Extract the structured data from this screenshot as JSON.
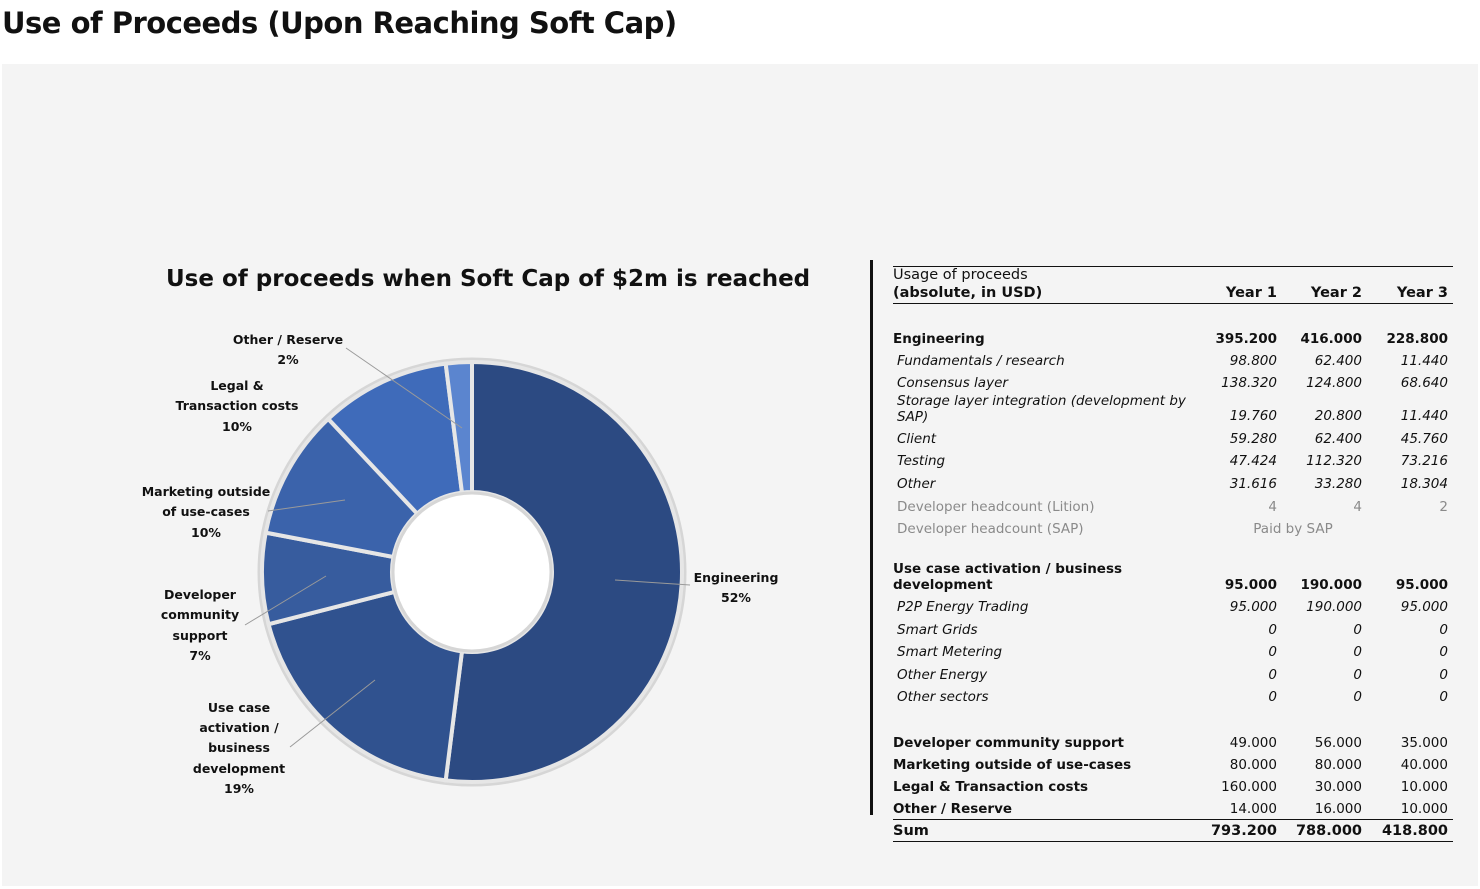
{
  "page_title": "Use of Proceeds (Upon Reaching Soft Cap)",
  "chart_data": {
    "type": "pie",
    "variant": "donut",
    "title": "Use of proceeds when Soft Cap of $2m is reached",
    "slices": [
      {
        "label": "Engineering",
        "percent_label": "52%",
        "value": 52,
        "color": "#2c4a82"
      },
      {
        "label": "Use case activation / business development",
        "percent_label": "19%",
        "value": 19,
        "color": "#30528f"
      },
      {
        "label": "Developer community support",
        "percent_label": "7%",
        "value": 7,
        "color": "#375c9e"
      },
      {
        "label": "Marketing outside of use-cases",
        "percent_label": "10%",
        "value": 10,
        "color": "#3b63ab"
      },
      {
        "label": "Legal & Transaction costs",
        "percent_label": "10%",
        "value": 10,
        "color": "#3f6bba"
      },
      {
        "label": "Other / Reserve",
        "percent_label": "2%",
        "value": 2,
        "color": "#5b85cf"
      }
    ]
  },
  "table": {
    "header": {
      "label_line1": "Usage of proceeds",
      "label_line2": "(absolute, in USD)",
      "years": [
        "Year  1",
        "Year 2",
        "Year 3"
      ]
    },
    "rows": [
      {
        "label": "Engineering",
        "values": [
          "395.200",
          "416.000",
          "228.800"
        ],
        "style": "bold"
      },
      {
        "label": "Fundamentals / research",
        "values": [
          "98.800",
          "62.400",
          "11.440"
        ],
        "style": "sub"
      },
      {
        "label": "Consensus layer",
        "values": [
          "138.320",
          "124.800",
          "68.640"
        ],
        "style": "sub"
      },
      {
        "label": "Storage layer integration (development by SAP)",
        "values": [
          "19.760",
          "20.800",
          "11.440"
        ],
        "style": "sub"
      },
      {
        "label": "Client",
        "values": [
          "59.280",
          "62.400",
          "45.760"
        ],
        "style": "sub"
      },
      {
        "label": "Testing",
        "values": [
          "47.424",
          "112.320",
          "73.216"
        ],
        "style": "sub"
      },
      {
        "label": "Other",
        "values": [
          "31.616",
          "33.280",
          "18.304"
        ],
        "style": "sub"
      },
      {
        "label": "Developer headcount (Lition)",
        "values": [
          "4",
          "4",
          "2"
        ],
        "style": "gray"
      },
      {
        "label": "Developer headcount (SAP)",
        "values": [
          "Paid by SAP"
        ],
        "style": "gray"
      },
      {
        "label": "Use case activation / business development",
        "values": [
          "95.000",
          "190.000",
          "95.000"
        ],
        "style": "bold"
      },
      {
        "label": "P2P Energy Trading",
        "values": [
          "95.000",
          "190.000",
          "95.000"
        ],
        "style": "sub"
      },
      {
        "label": "Smart Grids",
        "values": [
          "0",
          "0",
          "0"
        ],
        "style": "sub"
      },
      {
        "label": "Smart Metering",
        "values": [
          "0",
          "0",
          "0"
        ],
        "style": "sub"
      },
      {
        "label": "Other Energy",
        "values": [
          "0",
          "0",
          "0"
        ],
        "style": "sub"
      },
      {
        "label": "Other sectors",
        "values": [
          "0",
          "0",
          "0"
        ],
        "style": "sub"
      },
      {
        "label": "Developer community support",
        "values": [
          "49.000",
          "56.000",
          "35.000"
        ],
        "style": "boldlabel"
      },
      {
        "label": "Marketing outside of use-cases",
        "values": [
          "80.000",
          "80.000",
          "40.000"
        ],
        "style": "boldlabel"
      },
      {
        "label": "Legal & Transaction costs",
        "values": [
          "160.000",
          "30.000",
          "10.000"
        ],
        "style": "boldlabel"
      },
      {
        "label": "Other / Reserve",
        "values": [
          "14.000",
          "16.000",
          "10.000"
        ],
        "style": "boldlabel"
      },
      {
        "label": "Sum",
        "values": [
          "793.200",
          "788.000",
          "418.800"
        ],
        "style": "sum"
      }
    ]
  }
}
